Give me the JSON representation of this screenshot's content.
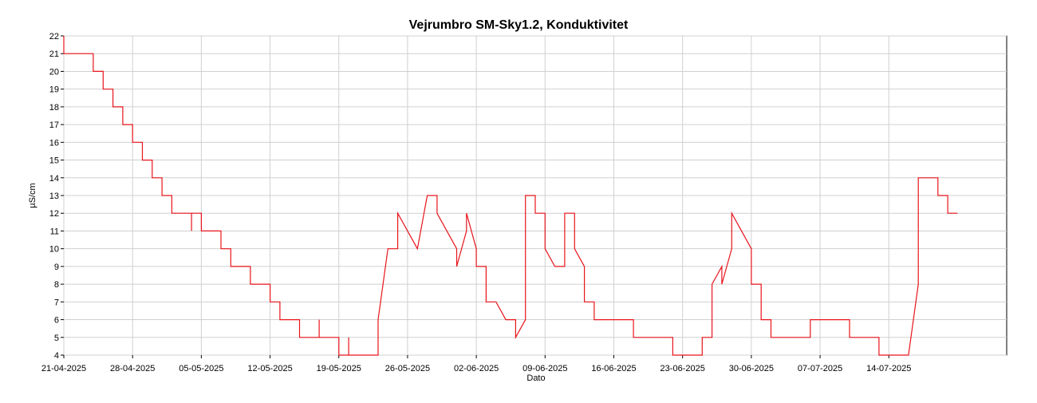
{
  "chart_data": {
    "type": "line",
    "title": "Vejrumbro SM-Sky1.2, Konduktivitet",
    "xlabel": "Dato",
    "ylabel": "µS/cm",
    "ylim": [
      4,
      22
    ],
    "y_ticks": [
      4,
      5,
      6,
      7,
      8,
      9,
      10,
      11,
      12,
      13,
      14,
      15,
      16,
      17,
      18,
      19,
      20,
      21,
      22
    ],
    "xlim": [
      "2025-04-21",
      "2025-07-26"
    ],
    "x_ticks": [
      "21-04-2025",
      "28-04-2025",
      "05-05-2025",
      "12-05-2025",
      "19-05-2025",
      "26-05-2025",
      "02-06-2025",
      "09-06-2025",
      "16-06-2025",
      "23-06-2025",
      "30-06-2025",
      "07-07-2025",
      "14-07-2025"
    ],
    "grid": true,
    "line_color": "#e8141b",
    "series": [
      {
        "points": [
          [
            "2025-04-21",
            22
          ],
          [
            "2025-04-21",
            21
          ],
          [
            "2025-04-24",
            21
          ],
          [
            "2025-04-24",
            20
          ],
          [
            "2025-04-25",
            20
          ],
          [
            "2025-04-25",
            19
          ],
          [
            "2025-04-26",
            19
          ],
          [
            "2025-04-26",
            18
          ],
          [
            "2025-04-27",
            18
          ],
          [
            "2025-04-27",
            17
          ],
          [
            "2025-04-28",
            17
          ],
          [
            "2025-04-28",
            16
          ],
          [
            "2025-04-29",
            16
          ],
          [
            "2025-04-29",
            15
          ],
          [
            "2025-04-30",
            15
          ],
          [
            "2025-04-30",
            14
          ],
          [
            "2025-05-01",
            14
          ],
          [
            "2025-05-01",
            13
          ],
          [
            "2025-05-02",
            13
          ],
          [
            "2025-05-02",
            12
          ],
          [
            "2025-05-04",
            12
          ],
          [
            "2025-05-04",
            11
          ],
          [
            "2025-05-04",
            12
          ],
          [
            "2025-05-05",
            12
          ],
          [
            "2025-05-05",
            11
          ],
          [
            "2025-05-07",
            11
          ],
          [
            "2025-05-07",
            10
          ],
          [
            "2025-05-08",
            10
          ],
          [
            "2025-05-08",
            9
          ],
          [
            "2025-05-10",
            9
          ],
          [
            "2025-05-10",
            8
          ],
          [
            "2025-05-12",
            8
          ],
          [
            "2025-05-12",
            7
          ],
          [
            "2025-05-13",
            7
          ],
          [
            "2025-05-13",
            6
          ],
          [
            "2025-05-15",
            6
          ],
          [
            "2025-05-15",
            5
          ],
          [
            "2025-05-17",
            5
          ],
          [
            "2025-05-17",
            6
          ],
          [
            "2025-05-17",
            5
          ],
          [
            "2025-05-19",
            5
          ],
          [
            "2025-05-19",
            4
          ],
          [
            "2025-05-20",
            4
          ],
          [
            "2025-05-20",
            5
          ],
          [
            "2025-05-20",
            4
          ],
          [
            "2025-05-23",
            4
          ],
          [
            "2025-05-23",
            6
          ],
          [
            "2025-05-24",
            10
          ],
          [
            "2025-05-25",
            10
          ],
          [
            "2025-05-25",
            12
          ],
          [
            "2025-05-26",
            11
          ],
          [
            "2025-05-27",
            10
          ],
          [
            "2025-05-28",
            13
          ],
          [
            "2025-05-29",
            13
          ],
          [
            "2025-05-29",
            12
          ],
          [
            "2025-05-30",
            11
          ],
          [
            "2025-05-31",
            10
          ],
          [
            "2025-05-31",
            9
          ],
          [
            "2025-06-01",
            11
          ],
          [
            "2025-06-01",
            12
          ],
          [
            "2025-06-02",
            10
          ],
          [
            "2025-06-02",
            9
          ],
          [
            "2025-06-03",
            9
          ],
          [
            "2025-06-03",
            7
          ],
          [
            "2025-06-04",
            7
          ],
          [
            "2025-06-05",
            6
          ],
          [
            "2025-06-06",
            6
          ],
          [
            "2025-06-06",
            5
          ],
          [
            "2025-06-07",
            6
          ],
          [
            "2025-06-07",
            13
          ],
          [
            "2025-06-08",
            13
          ],
          [
            "2025-06-08",
            12
          ],
          [
            "2025-06-09",
            12
          ],
          [
            "2025-06-09",
            10
          ],
          [
            "2025-06-10",
            9
          ],
          [
            "2025-06-11",
            9
          ],
          [
            "2025-06-11",
            12
          ],
          [
            "2025-06-12",
            12
          ],
          [
            "2025-06-12",
            10
          ],
          [
            "2025-06-13",
            9
          ],
          [
            "2025-06-13",
            7
          ],
          [
            "2025-06-14",
            7
          ],
          [
            "2025-06-14",
            6
          ],
          [
            "2025-06-18",
            6
          ],
          [
            "2025-06-18",
            5
          ],
          [
            "2025-06-22",
            5
          ],
          [
            "2025-06-22",
            4
          ],
          [
            "2025-06-25",
            4
          ],
          [
            "2025-06-25",
            5
          ],
          [
            "2025-06-26",
            5
          ],
          [
            "2025-06-26",
            8
          ],
          [
            "2025-06-27",
            9
          ],
          [
            "2025-06-27",
            8
          ],
          [
            "2025-06-28",
            10
          ],
          [
            "2025-06-28",
            12
          ],
          [
            "2025-06-29",
            11
          ],
          [
            "2025-06-30",
            10
          ],
          [
            "2025-06-30",
            8
          ],
          [
            "2025-07-01",
            8
          ],
          [
            "2025-07-01",
            6
          ],
          [
            "2025-07-02",
            6
          ],
          [
            "2025-07-02",
            5
          ],
          [
            "2025-07-06",
            5
          ],
          [
            "2025-07-06",
            6
          ],
          [
            "2025-07-10",
            6
          ],
          [
            "2025-07-10",
            5
          ],
          [
            "2025-07-13",
            5
          ],
          [
            "2025-07-13",
            4
          ],
          [
            "2025-07-16",
            4
          ],
          [
            "2025-07-17",
            8
          ],
          [
            "2025-07-17",
            14
          ],
          [
            "2025-07-18",
            14
          ],
          [
            "2025-07-19",
            14
          ],
          [
            "2025-07-19",
            13
          ],
          [
            "2025-07-20",
            13
          ],
          [
            "2025-07-20",
            12
          ],
          [
            "2025-07-21",
            12
          ]
        ]
      }
    ]
  }
}
